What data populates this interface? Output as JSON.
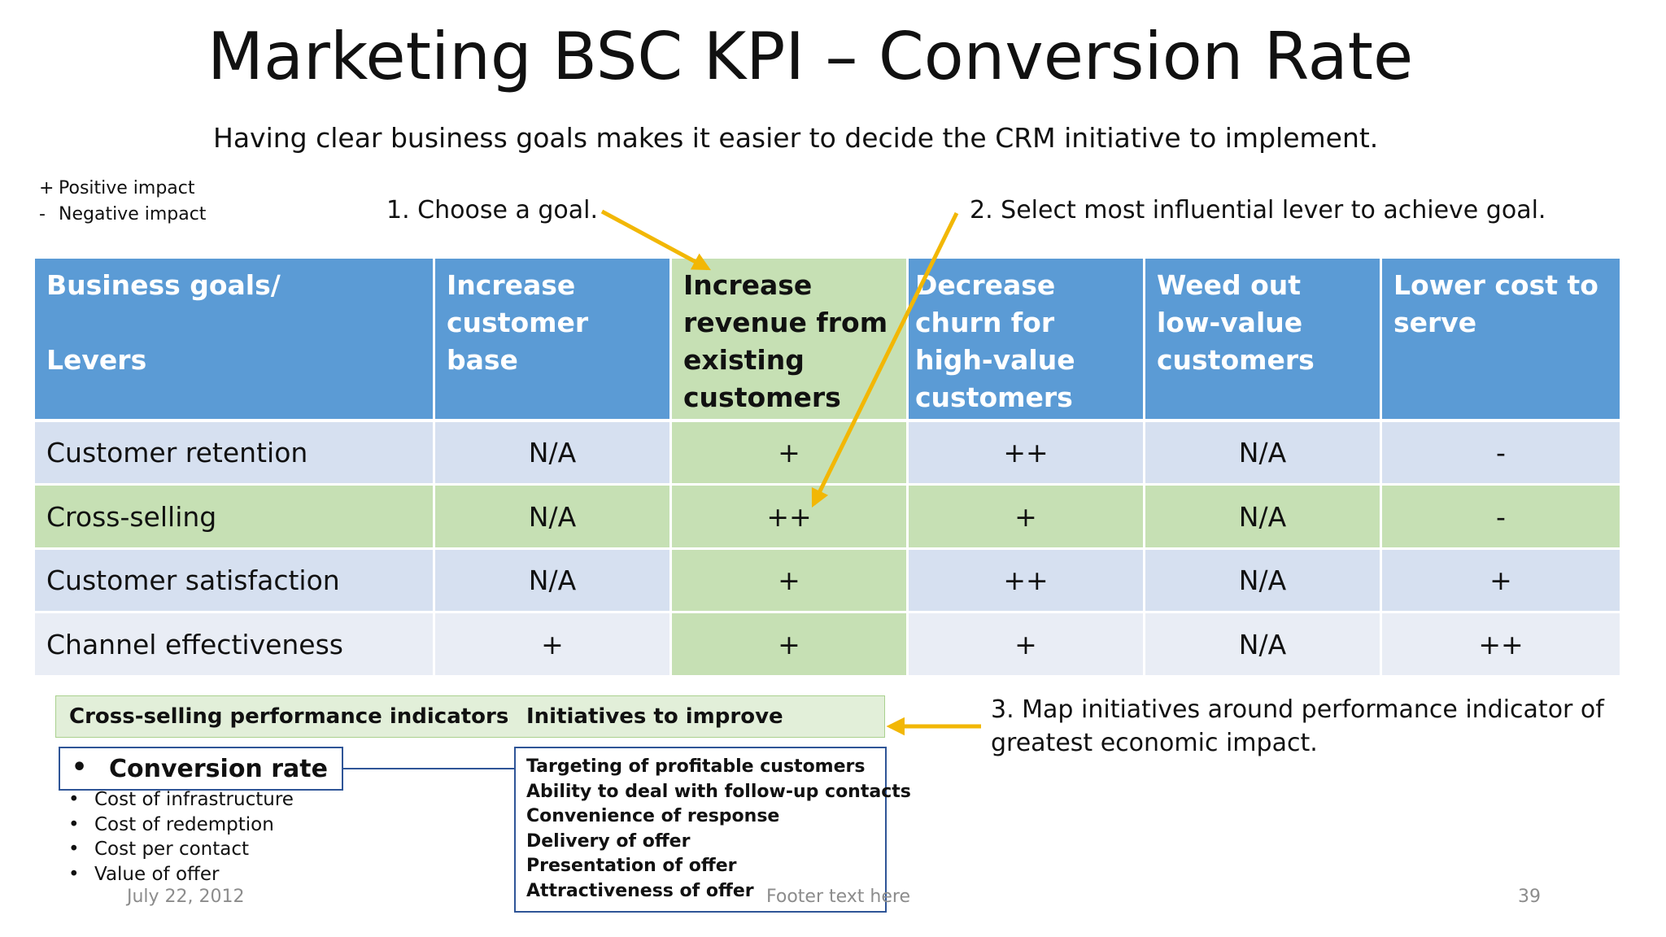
{
  "title": "Marketing BSC KPI – Conversion Rate",
  "subtitle": "Having clear business goals makes it easier to decide the CRM initiative to implement.",
  "legend": [
    {
      "symbol": "+",
      "label": "Positive impact"
    },
    {
      "symbol": "-",
      "label": "Negative impact"
    }
  ],
  "steps": {
    "step1": "1.  Choose a goal.",
    "step2": "2.  Select most influential lever to achieve goal.",
    "step3": "3.  Map initiatives around performance indicator of greatest economic impact."
  },
  "table": {
    "header_corner": [
      "Business goals/",
      "Levers"
    ],
    "goals": [
      "Increase customer base",
      "Increase revenue from existing customers",
      "Decrease churn for high-value customers",
      "Weed out low-value customers",
      "Lower cost to serve"
    ],
    "highlighted_goal_index": 1,
    "rows": [
      {
        "lever": "Customer retention",
        "values": [
          "N/A",
          "+",
          "++",
          "N/A",
          "-"
        ]
      },
      {
        "lever": "Cross-selling",
        "values": [
          "N/A",
          "++",
          "+",
          "N/A",
          "-"
        ]
      },
      {
        "lever": "Customer satisfaction",
        "values": [
          "N/A",
          "+",
          "++",
          "N/A",
          "+"
        ]
      },
      {
        "lever": "Channel effectiveness",
        "values": [
          "+",
          "+",
          "+",
          "N/A",
          "++"
        ]
      }
    ]
  },
  "indicators": {
    "header_left": "Cross-selling performance indicators",
    "header_right": "Initiatives to improve",
    "selected": "Conversion rate",
    "bullet": "•",
    "others": [
      "Cost of infrastructure",
      "Cost of redemption",
      "Cost per contact",
      "Value of offer"
    ],
    "initiatives": [
      "Targeting of profitable customers",
      "Ability to deal with follow-up contacts",
      "Convenience of response",
      "Delivery of offer",
      "Presentation of offer",
      "Attractiveness of offer"
    ]
  },
  "footer": {
    "date": "July 22, 2012",
    "text": "Footer text here",
    "page": "39"
  },
  "colors": {
    "header_blue": "#5b9bd5",
    "highlight_green": "#c6e0b4",
    "arrow": "#f2b705",
    "box_border": "#2f5597"
  }
}
